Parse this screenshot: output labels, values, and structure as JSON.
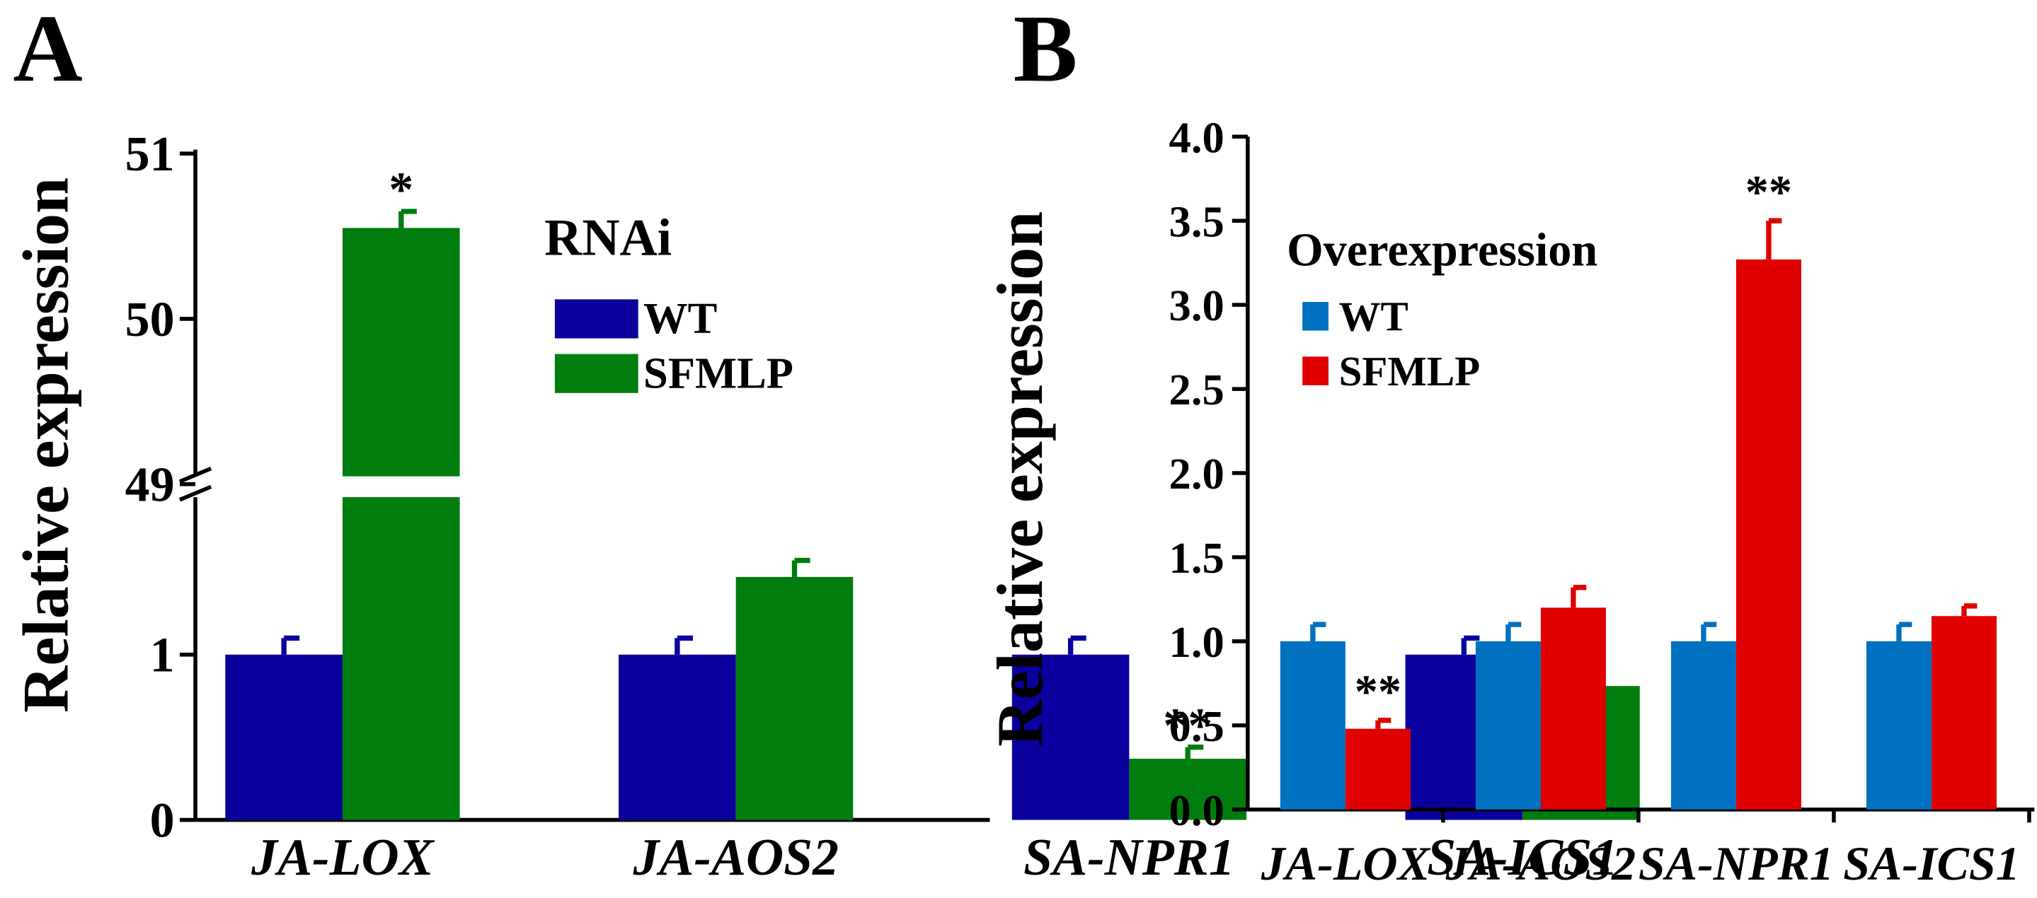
{
  "chart_data": [
    {
      "type": "bar",
      "panel_label": "A",
      "title": "",
      "xlabel": "",
      "ylabel": "Relative expression",
      "legend_title": "RNAi",
      "legend_position": "top-right",
      "categories": [
        "JA-LOX",
        "JA-AOS2",
        "SA-NPR1",
        "SA-ICS1"
      ],
      "series": [
        {
          "name": "WT",
          "color": "#0a009e",
          "values": [
            1.0,
            1.0,
            1.0,
            1.0
          ],
          "errors": [
            0.1,
            0.1,
            0.1,
            0.1
          ]
        },
        {
          "name": "SFMLP",
          "color": "#007d0e",
          "values": [
            50.55,
            1.47,
            0.37,
            0.81
          ],
          "errors": [
            0.1,
            0.1,
            0.07,
            0.19
          ]
        }
      ],
      "annotations": [
        {
          "category": "JA-LOX",
          "series": "SFMLP",
          "text": "*"
        },
        {
          "category": "SA-NPR1",
          "series": "SFMLP",
          "text": "**"
        }
      ],
      "y_axis": {
        "broken": true,
        "lower_range": [
          0,
          2
        ],
        "upper_range": [
          49,
          51
        ],
        "tick_labels": [
          "0",
          "1",
          "49",
          "50",
          "51"
        ]
      },
      "grid": false
    },
    {
      "type": "bar",
      "panel_label": "B",
      "title": "",
      "xlabel": "",
      "ylabel": "Relative expression",
      "legend_title": "Overexpression",
      "legend_position": "top-left",
      "categories": [
        "JA-LOX",
        "JA-AOS2",
        "SA-NPR1",
        "SA-ICS1"
      ],
      "series": [
        {
          "name": "WT",
          "color": "#0070c0",
          "values": [
            1.0,
            1.0,
            1.0,
            1.0
          ],
          "errors": [
            0.1,
            0.1,
            0.1,
            0.1
          ]
        },
        {
          "name": "SFMLP",
          "color": "#e00000",
          "values": [
            0.48,
            1.2,
            3.27,
            1.15
          ],
          "errors": [
            0.05,
            0.12,
            0.23,
            0.06
          ]
        }
      ],
      "annotations": [
        {
          "category": "JA-LOX",
          "series": "SFMLP",
          "text": "**"
        },
        {
          "category": "SA-NPR1",
          "series": "SFMLP",
          "text": "**"
        }
      ],
      "ylim": [
        0,
        4
      ],
      "yticks": [
        "0.0",
        "0.5",
        "1.0",
        "1.5",
        "2.0",
        "2.5",
        "3.0",
        "3.5",
        "4.0"
      ],
      "grid": false
    }
  ]
}
